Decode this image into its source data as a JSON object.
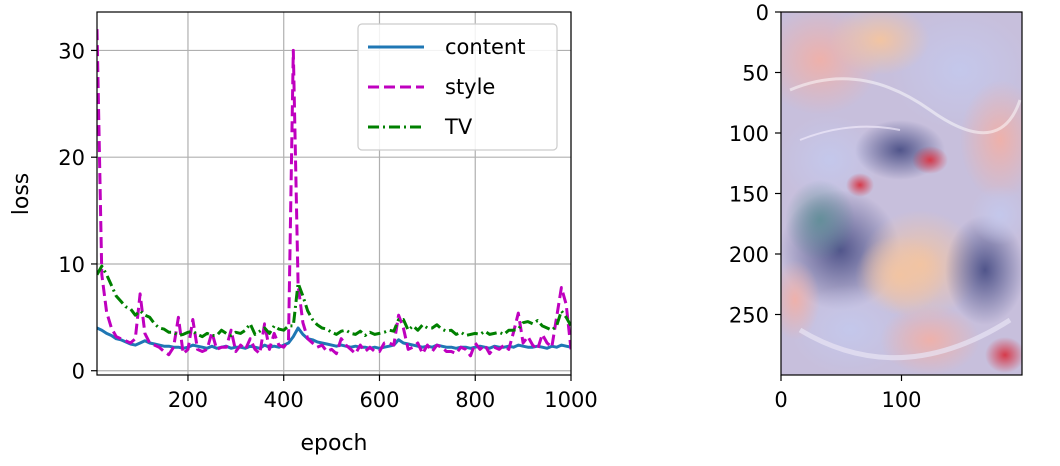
{
  "chart_data": [
    {
      "type": "line",
      "xlabel": "epoch",
      "ylabel": "loss",
      "xlim": [
        10,
        1000
      ],
      "ylim": [
        -0.4,
        33.6
      ],
      "xticks": [
        200,
        400,
        600,
        800,
        1000
      ],
      "yticks": [
        0,
        10,
        20,
        30
      ],
      "grid": true,
      "legend": "top-right",
      "x": [
        10,
        20,
        30,
        40,
        50,
        60,
        70,
        80,
        90,
        100,
        110,
        120,
        130,
        140,
        150,
        160,
        170,
        180,
        190,
        200,
        210,
        220,
        230,
        240,
        250,
        260,
        270,
        280,
        290,
        300,
        310,
        320,
        330,
        340,
        350,
        360,
        370,
        380,
        390,
        400,
        410,
        420,
        430,
        440,
        450,
        460,
        470,
        480,
        490,
        500,
        510,
        520,
        530,
        540,
        550,
        560,
        570,
        580,
        590,
        600,
        610,
        620,
        630,
        640,
        650,
        660,
        670,
        680,
        690,
        700,
        710,
        720,
        730,
        740,
        750,
        760,
        770,
        780,
        790,
        800,
        810,
        820,
        830,
        840,
        850,
        860,
        870,
        880,
        890,
        900,
        910,
        920,
        930,
        940,
        950,
        960,
        970,
        980,
        990,
        1000
      ],
      "series": [
        {
          "name": "content",
          "color": "#1f77b4",
          "dash": "solid",
          "values": [
            4.0,
            3.8,
            3.5,
            3.3,
            3.0,
            2.9,
            2.7,
            2.5,
            2.4,
            2.6,
            2.8,
            2.6,
            2.5,
            2.4,
            2.3,
            2.3,
            2.2,
            2.2,
            2.1,
            2.2,
            2.4,
            2.3,
            2.2,
            2.1,
            2.3,
            2.1,
            2.2,
            2.3,
            2.1,
            2.2,
            2.2,
            2.1,
            2.3,
            2.2,
            2.1,
            2.4,
            2.2,
            2.3,
            2.2,
            2.4,
            2.6,
            3.2,
            4.0,
            3.4,
            3.0,
            2.9,
            2.7,
            2.6,
            2.5,
            2.4,
            2.3,
            2.4,
            2.3,
            2.2,
            2.3,
            2.2,
            2.2,
            2.1,
            2.2,
            2.1,
            2.2,
            2.3,
            2.4,
            2.9,
            2.6,
            2.5,
            2.4,
            2.3,
            2.2,
            2.3,
            2.2,
            2.4,
            2.3,
            2.2,
            2.2,
            2.1,
            2.2,
            2.2,
            2.1,
            2.2,
            2.3,
            2.2,
            2.1,
            2.3,
            2.2,
            2.2,
            2.3,
            2.2,
            2.4,
            2.3,
            2.2,
            2.2,
            2.3,
            2.2,
            2.1,
            2.3,
            2.2,
            2.4,
            2.3,
            2.2
          ]
        },
        {
          "name": "style",
          "color": "#bf00bf",
          "dash": "dashed",
          "values": [
            32.0,
            9.0,
            5.5,
            4.0,
            3.2,
            3.0,
            2.8,
            2.6,
            3.0,
            7.2,
            3.5,
            2.6,
            2.4,
            2.2,
            1.8,
            1.5,
            2.2,
            5.0,
            1.6,
            2.0,
            4.8,
            2.0,
            1.8,
            2.0,
            3.6,
            2.0,
            2.2,
            2.2,
            3.8,
            1.8,
            2.4,
            2.0,
            3.0,
            2.0,
            1.6,
            4.4,
            2.0,
            3.5,
            2.4,
            2.2,
            2.8,
            30.0,
            8.0,
            4.5,
            3.0,
            2.6,
            2.2,
            2.4,
            1.8,
            2.0,
            1.6,
            3.0,
            2.4,
            2.0,
            1.6,
            2.4,
            1.8,
            2.2,
            1.8,
            1.8,
            2.6,
            2.6,
            2.4,
            5.2,
            4.0,
            2.0,
            2.2,
            2.6,
            1.6,
            2.4,
            1.8,
            2.4,
            2.2,
            1.8,
            1.8,
            1.6,
            2.2,
            2.0,
            1.4,
            2.6,
            2.0,
            2.4,
            1.6,
            2.2,
            2.0,
            2.4,
            2.0,
            3.6,
            5.4,
            2.6,
            3.2,
            2.4,
            2.0,
            3.4,
            2.6,
            2.2,
            5.0,
            7.8,
            6.2,
            2.0
          ]
        },
        {
          "name": "TV",
          "color": "#008000",
          "dash": "dashdot",
          "values": [
            9.0,
            9.8,
            9.0,
            8.0,
            7.0,
            6.5,
            6.0,
            5.8,
            5.2,
            5.6,
            5.2,
            5.0,
            4.4,
            4.0,
            3.9,
            3.6,
            3.6,
            3.3,
            3.4,
            3.6,
            3.7,
            3.4,
            3.2,
            3.5,
            3.3,
            3.3,
            3.8,
            3.5,
            3.3,
            3.6,
            3.5,
            3.8,
            4.4,
            3.4,
            3.7,
            4.0,
            3.5,
            4.2,
            3.9,
            3.8,
            4.2,
            4.2,
            8.2,
            7.0,
            5.6,
            4.8,
            4.3,
            4.0,
            3.9,
            3.6,
            3.4,
            3.7,
            3.8,
            3.5,
            3.4,
            3.7,
            3.3,
            3.6,
            3.4,
            3.5,
            3.6,
            3.8,
            3.7,
            4.8,
            4.8,
            3.8,
            4.2,
            3.8,
            4.3,
            4.0,
            4.0,
            4.3,
            3.9,
            3.7,
            3.8,
            3.4,
            3.6,
            3.3,
            3.4,
            3.5,
            3.4,
            3.7,
            3.4,
            3.5,
            3.6,
            3.4,
            3.8,
            3.8,
            3.9,
            4.5,
            4.6,
            4.4,
            4.7,
            4.2,
            4.0,
            3.8,
            4.2,
            5.6,
            5.0,
            4.2
          ]
        }
      ]
    },
    {
      "type": "image",
      "xlim": [
        0,
        200
      ],
      "ylim": [
        300,
        0
      ],
      "xticks": [
        0,
        100
      ],
      "yticks": [
        0,
        50,
        100,
        150,
        200,
        250
      ],
      "grid": false
    }
  ]
}
